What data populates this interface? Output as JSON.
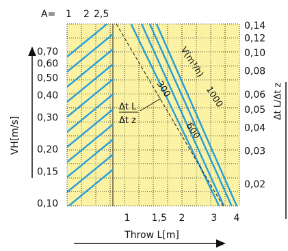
{
  "chart_data": {
    "type": "line",
    "a_prefix": "A=",
    "a_values": [
      "1",
      "2",
      "2,5"
    ],
    "left_ticks": [
      {
        "label": "0,70",
        "value": 0.7
      },
      {
        "label": "0,60",
        "value": 0.6
      },
      {
        "label": "0,50",
        "value": 0.5
      },
      {
        "label": "0,40",
        "value": 0.4
      },
      {
        "label": "0,30",
        "value": 0.3
      },
      {
        "label": "0,20",
        "value": 0.2
      },
      {
        "label": "0,15",
        "value": 0.15
      },
      {
        "label": "0,10",
        "value": 0.1
      }
    ],
    "right_ticks": [
      {
        "label": "0,14",
        "value": 0.14
      },
      {
        "label": "0,12",
        "value": 0.12
      },
      {
        "label": "0,10",
        "value": 0.1
      },
      {
        "label": "0,08",
        "value": 0.08
      },
      {
        "label": "0,06",
        "value": 0.06
      },
      {
        "label": "0,05",
        "value": 0.05
      },
      {
        "label": "0,04",
        "value": 0.04
      },
      {
        "label": "0,03",
        "value": 0.03
      },
      {
        "label": "0,02",
        "value": 0.02
      }
    ],
    "bottom_ticks": [
      {
        "label": "1",
        "value": 1
      },
      {
        "label": "1,5",
        "value": 1.5
      },
      {
        "label": "2",
        "value": 2
      },
      {
        "label": "3",
        "value": 3
      },
      {
        "label": "4",
        "value": 4
      }
    ],
    "xlabel": "Throw L[m]",
    "ylabel_left": "VH[m/s]",
    "ylabel_right": "Δt L/Δt z",
    "flow_label": "V(m³/h)",
    "ratio_label_num": "Δt L",
    "ratio_label_den": "Δt z",
    "flow_series": [
      {
        "name": "300",
        "top_throw": 1.05,
        "bottom_throw": 3.2
      },
      {
        "name": "600",
        "top_throw": 1.2,
        "bottom_throw": 3.4
      },
      {
        "name": "1000",
        "top_throw": 1.33,
        "bottom_throw": 3.75
      },
      {
        "name": "",
        "top_throw": 1.45,
        "bottom_throw": 4.0
      }
    ],
    "a_series_count": 11,
    "colors": {
      "plot_bg": "#fbf3a3",
      "grid": "#3a3a2e",
      "flow_line": "#2a9ed9",
      "ratio_line": "#111111",
      "text": "#111111"
    }
  }
}
